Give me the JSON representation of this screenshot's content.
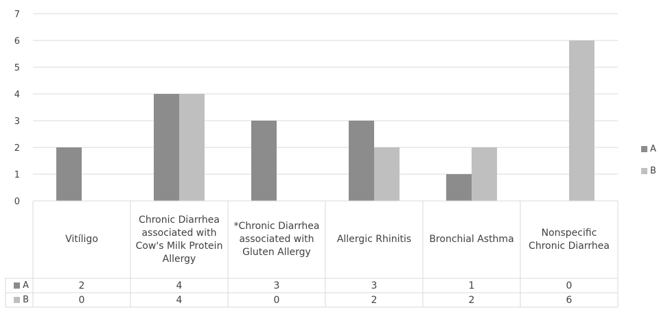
{
  "chart_data": {
    "type": "bar",
    "categories": [
      "Vitíligo",
      "Chronic Diarrhea associated with Cow's Milk Protein Allergy",
      "*Chronic Diarrhea associated with Gluten Allergy",
      "Allergic Rhinitis",
      "Bronchial Asthma",
      "Nonspecific Chronic Diarrhea"
    ],
    "series": [
      {
        "name": "A",
        "values": [
          2,
          4,
          3,
          3,
          1,
          0
        ],
        "color": "#8c8c8c"
      },
      {
        "name": "B",
        "values": [
          0,
          4,
          0,
          2,
          2,
          6
        ],
        "color": "#bfbfbf"
      }
    ],
    "ylim": [
      0,
      7
    ],
    "yticks": [
      0,
      1,
      2,
      3,
      4,
      5,
      6,
      7
    ],
    "grid": true,
    "legend_position": "right",
    "data_table": true
  }
}
